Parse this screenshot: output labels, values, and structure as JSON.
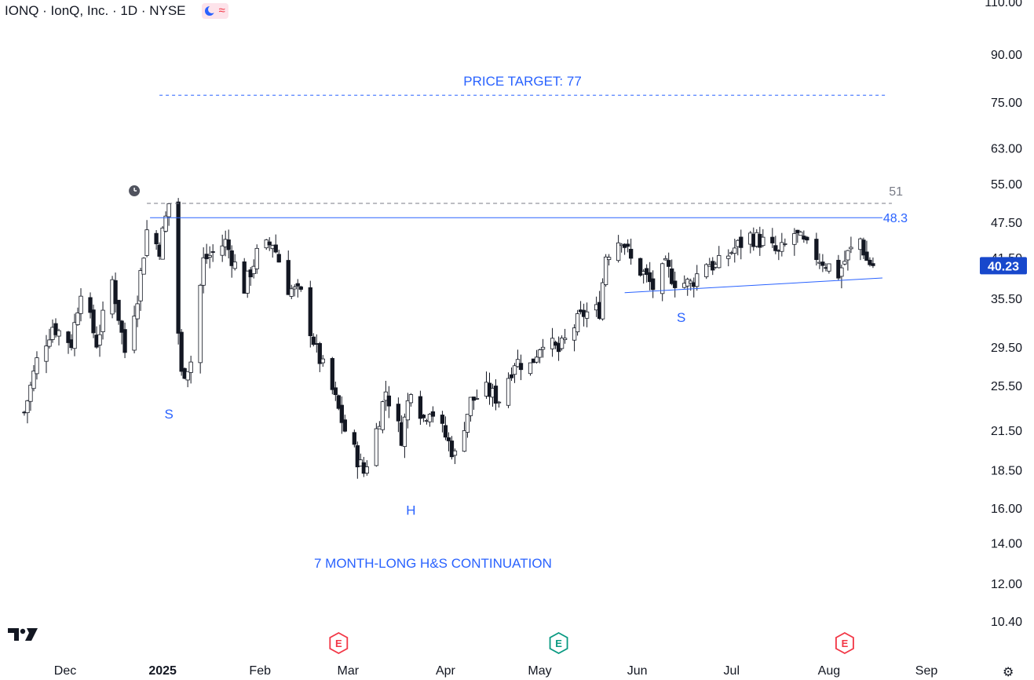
{
  "header": {
    "title": "IONQ · IonQ, Inc. · 1D · NYSE",
    "moon_icon": "moon-icon",
    "wave_icon": "wave-icon"
  },
  "colors": {
    "up": "#131722",
    "down": "#131722",
    "annotation": "#2962ff",
    "resistance_dash": "#787b86",
    "price_tag": "#1848cc"
  },
  "chart_data": {
    "type": "candlestick",
    "symbol": "IONQ",
    "interval": "1D",
    "scale": "log",
    "y_ticks": [
      110.0,
      90.0,
      75.0,
      63.0,
      55.0,
      47.5,
      41.5,
      35.5,
      29.5,
      25.5,
      21.5,
      18.5,
      16.0,
      14.0,
      12.0,
      10.4
    ],
    "y_tick_labels": [
      "110.00",
      "90.00",
      "75.00",
      "63.00",
      "55.00",
      "47.50",
      "41.50",
      "35.50",
      "29.50",
      "25.50",
      "21.50",
      "18.50",
      "16.00",
      "14.00",
      "12.00",
      "10.40"
    ],
    "x_ticks": [
      {
        "date": "2024-12-01",
        "label": "Dec"
      },
      {
        "date": "2025-01-01",
        "label": "2025"
      },
      {
        "date": "2025-02-01",
        "label": "Feb"
      },
      {
        "date": "2025-03-01",
        "label": "Mar"
      },
      {
        "date": "2025-04-01",
        "label": "Apr"
      },
      {
        "date": "2025-05-01",
        "label": "May"
      },
      {
        "date": "2025-06-01",
        "label": "Jun"
      },
      {
        "date": "2025-07-01",
        "label": "Jul"
      },
      {
        "date": "2025-08-01",
        "label": "Aug"
      },
      {
        "date": "2025-09-01",
        "label": "Sep"
      }
    ],
    "last_price": "40.23",
    "price_target": {
      "value": 77,
      "label": "PRICE TARGET: 77"
    },
    "resistance": {
      "value": 51,
      "label": "51"
    },
    "neckline": {
      "value": 48.3,
      "label": "48.3"
    },
    "pattern_labels": [
      {
        "text": "S",
        "date": "2025-01-03",
        "price": 22.5
      },
      {
        "text": "H",
        "date": "2025-03-21",
        "price": 15.6
      },
      {
        "text": "S",
        "date": "2025-06-15",
        "price": 32.5
      }
    ],
    "pattern_title": "7 MONTH-LONG H&S CONTINUATION",
    "earnings": [
      {
        "date": "2025-02-26",
        "label": "E",
        "state": "red"
      },
      {
        "date": "2025-05-07",
        "label": "E",
        "state": "green"
      },
      {
        "date": "2025-08-06",
        "label": "E",
        "state": "red"
      }
    ],
    "anchors": [
      [
        "2024-11-18",
        23
      ],
      [
        "2024-11-22",
        28
      ],
      [
        "2024-11-27",
        32
      ],
      [
        "2024-12-03",
        30
      ],
      [
        "2024-12-06",
        37
      ],
      [
        "2024-12-11",
        30
      ],
      [
        "2024-12-16",
        38
      ],
      [
        "2024-12-20",
        29
      ],
      [
        "2024-12-24",
        36
      ],
      [
        "2024-12-27",
        46
      ],
      [
        "2024-12-31",
        43
      ],
      [
        "2025-01-03",
        51
      ],
      [
        "2025-01-07",
        26.5
      ],
      [
        "2025-01-10",
        28
      ],
      [
        "2025-01-14",
        41
      ],
      [
        "2025-01-21",
        44
      ],
      [
        "2025-01-27",
        37
      ],
      [
        "2025-01-31",
        42
      ],
      [
        "2025-02-05",
        44
      ],
      [
        "2025-02-10",
        37
      ],
      [
        "2025-02-14",
        36
      ],
      [
        "2025-02-19",
        29
      ],
      [
        "2025-02-24",
        25
      ],
      [
        "2025-02-28",
        21.5
      ],
      [
        "2025-03-06",
        18.3
      ],
      [
        "2025-03-10",
        21.5
      ],
      [
        "2025-03-13",
        25
      ],
      [
        "2025-03-18",
        21
      ],
      [
        "2025-03-21",
        25.5
      ],
      [
        "2025-03-25",
        22.5
      ],
      [
        "2025-03-27",
        23.5
      ],
      [
        "2025-04-01",
        21
      ],
      [
        "2025-04-04",
        19.5
      ],
      [
        "2025-04-09",
        24
      ],
      [
        "2025-04-14",
        25
      ],
      [
        "2025-04-18",
        24.2
      ],
      [
        "2025-04-23",
        28
      ],
      [
        "2025-04-28",
        27.5
      ],
      [
        "2025-05-02",
        30.5
      ],
      [
        "2025-05-07",
        29
      ],
      [
        "2025-05-12",
        32
      ],
      [
        "2025-05-15",
        33.5
      ],
      [
        "2025-05-20",
        34
      ],
      [
        "2025-05-22",
        42
      ],
      [
        "2025-05-27",
        45
      ],
      [
        "2025-05-30",
        41
      ],
      [
        "2025-06-03",
        39
      ],
      [
        "2025-06-06",
        37
      ],
      [
        "2025-06-10",
        40
      ],
      [
        "2025-06-13",
        38
      ],
      [
        "2025-06-18",
        37.5
      ],
      [
        "2025-06-23",
        41
      ],
      [
        "2025-06-26",
        40
      ],
      [
        "2025-07-02",
        43
      ],
      [
        "2025-07-07",
        45
      ],
      [
        "2025-07-11",
        44
      ],
      [
        "2025-07-16",
        42
      ],
      [
        "2025-07-21",
        45.5
      ],
      [
        "2025-07-25",
        43
      ],
      [
        "2025-07-30",
        41
      ],
      [
        "2025-08-04",
        39
      ],
      [
        "2025-08-07",
        42
      ],
      [
        "2025-08-11",
        44.5
      ],
      [
        "2025-08-13",
        41
      ],
      [
        "2025-08-15",
        40.23
      ]
    ]
  },
  "price_axis": {
    "settings_icon": "settings-icon"
  },
  "branding": {
    "logo": "tradingview-logo",
    "logo_text": "TV"
  }
}
